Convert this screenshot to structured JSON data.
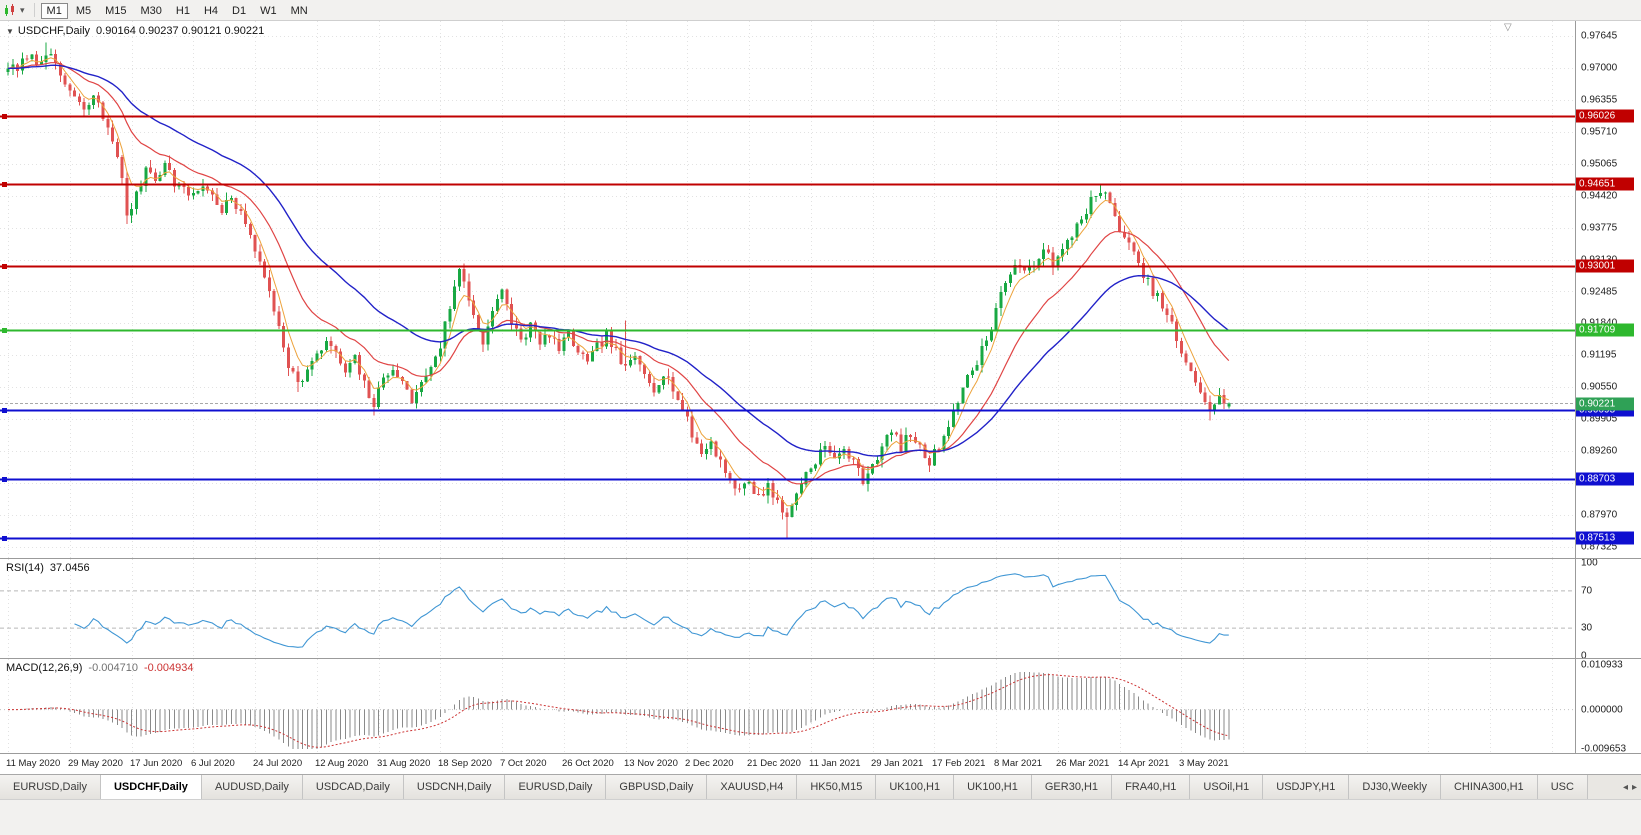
{
  "window": {
    "title": "USDCHF,Daily"
  },
  "toolbar": {
    "timeframes": [
      "M1",
      "M5",
      "M15",
      "M30",
      "H1",
      "H4",
      "D1",
      "W1",
      "MN"
    ],
    "active_timeframe": "M1"
  },
  "chart": {
    "symbol_label": "USDCHF,Daily",
    "ohlc_label": "0.90164 0.90237 0.90121 0.90221",
    "collapse_glyph": "▼",
    "shift_marker_glyph": "▽"
  },
  "rsi_panel": {
    "name": "RSI(14)",
    "value": "37.0456",
    "scale_labels": [
      "100",
      "70",
      "30",
      "0"
    ]
  },
  "macd_panel": {
    "name": "MACD(12,26,9)",
    "value_main": "-0.004710",
    "value_signal": "-0.004934",
    "scale_labels": [
      "0.010933",
      "0.000000",
      "-0.009653"
    ]
  },
  "tabs": {
    "items": [
      "EURUSD,Daily",
      "USDCHF,Daily",
      "AUDUSD,Daily",
      "USDCAD,Daily",
      "USDCNH,Daily",
      "EURUSD,Daily",
      "GBPUSD,Daily",
      "XAUUSD,H4",
      "HK50,M15",
      "UK100,H1",
      "UK100,H1",
      "GER30,H1",
      "FRA40,H1",
      "USOil,H1",
      "USDJPY,H1",
      "DJ30,Weekly",
      "CHINA300,H1",
      "USC"
    ],
    "active_index": 1,
    "scroll_left_glyph": "◂",
    "scroll_right_glyph": "▸"
  },
  "chart_data": {
    "type": "candlestick",
    "symbol": "USDCHF",
    "timeframe": "Daily",
    "bars": 258,
    "seed": 7,
    "last_ohlc": {
      "open": 0.90164,
      "high": 0.90237,
      "low": 0.90121,
      "close": 0.90221
    },
    "price_scale": {
      "top": 0.9795,
      "bottom": 0.871,
      "ticks": [
        "0.97645",
        "0.97000",
        "0.96355",
        "0.95710",
        "0.95065",
        "0.94420",
        "0.93775",
        "0.93130",
        "0.92485",
        "0.91840",
        "0.91195",
        "0.90550",
        "0.89905",
        "0.89260",
        "0.88615",
        "0.87970",
        "0.87325"
      ]
    },
    "x_labels": [
      "11 May 2020",
      "29 May 2020",
      "17 Jun 2020",
      "6 Jul 2020",
      "24 Jul 2020",
      "12 Aug 2020",
      "31 Aug 2020",
      "18 Sep 2020",
      "7 Oct 2020",
      "26 Oct 2020",
      "13 Nov 2020",
      "2 Dec 2020",
      "21 Dec 2020",
      "11 Jan 2021",
      "29 Jan 2021",
      "17 Feb 2021",
      "8 Mar 2021",
      "26 Mar 2021",
      "14 Apr 2021",
      "3 May 2021"
    ],
    "bars_per_label": 13,
    "colors": {
      "up": "#18a843",
      "down": "#e05252",
      "grid": "#e2e2e2",
      "bid_line": "#a8a8a8"
    },
    "horizontal_lines": [
      {
        "price": 0.96026,
        "label": "0.96026",
        "color": "#c00000",
        "width": 2,
        "kind": "resistance"
      },
      {
        "price": 0.94651,
        "label": "0.94651",
        "color": "#c00000",
        "width": 2,
        "kind": "resistance"
      },
      {
        "price": 0.93001,
        "label": "0.93001",
        "color": "#c00000",
        "width": 2,
        "kind": "resistance"
      },
      {
        "price": 0.91709,
        "label": "0.91709",
        "color": "#2eb82e",
        "width": 2,
        "kind": "pivot"
      },
      {
        "price": 0.90095,
        "label": "0.90095",
        "color": "#0f0fd0",
        "width": 2,
        "kind": "support"
      },
      {
        "price": 0.88703,
        "label": "0.88703",
        "color": "#0f0fd0",
        "width": 2,
        "kind": "support"
      },
      {
        "price": 0.87513,
        "label": "0.87513",
        "color": "#0f0fd0",
        "width": 2,
        "kind": "support"
      }
    ],
    "bid": {
      "price": 0.90221,
      "label": "0.90221",
      "box_color": "#2fa156"
    },
    "moving_averages": [
      {
        "period": 5,
        "color": "#eda33c",
        "width": 1
      },
      {
        "period": 18,
        "color": "#e04545",
        "width": 1.2
      },
      {
        "period": 40,
        "color": "#2222c8",
        "width": 1.4
      }
    ],
    "anchors": [
      [
        0,
        0.9705
      ],
      [
        2,
        0.9692
      ],
      [
        4,
        0.9728
      ],
      [
        6,
        0.971
      ],
      [
        8,
        0.9735
      ],
      [
        10,
        0.97
      ],
      [
        12,
        0.9668
      ],
      [
        14,
        0.964
      ],
      [
        16,
        0.961
      ],
      [
        18,
        0.9645
      ],
      [
        20,
        0.96
      ],
      [
        22,
        0.956
      ],
      [
        24,
        0.947
      ],
      [
        25,
        0.9405
      ],
      [
        27,
        0.944
      ],
      [
        29,
        0.95
      ],
      [
        31,
        0.948
      ],
      [
        33,
        0.9505
      ],
      [
        35,
        0.947
      ],
      [
        37,
        0.945
      ],
      [
        39,
        0.9445
      ],
      [
        41,
        0.9465
      ],
      [
        43,
        0.944
      ],
      [
        45,
        0.9415
      ],
      [
        47,
        0.9435
      ],
      [
        49,
        0.94
      ],
      [
        51,
        0.937
      ],
      [
        53,
        0.93
      ],
      [
        55,
        0.925
      ],
      [
        57,
        0.918
      ],
      [
        59,
        0.9105
      ],
      [
        61,
        0.906
      ],
      [
        63,
        0.909
      ],
      [
        65,
        0.9115
      ],
      [
        67,
        0.915
      ],
      [
        69,
        0.912
      ],
      [
        71,
        0.9085
      ],
      [
        73,
        0.911
      ],
      [
        75,
        0.906
      ],
      [
        77,
        0.902
      ],
      [
        79,
        0.907
      ],
      [
        81,
        0.91
      ],
      [
        83,
        0.906
      ],
      [
        85,
        0.903
      ],
      [
        87,
        0.906
      ],
      [
        89,
        0.91
      ],
      [
        91,
        0.914
      ],
      [
        93,
        0.922
      ],
      [
        95,
        0.929
      ],
      [
        96,
        0.927
      ],
      [
        98,
        0.92
      ],
      [
        100,
        0.915
      ],
      [
        102,
        0.921
      ],
      [
        104,
        0.9245
      ],
      [
        106,
        0.919
      ],
      [
        108,
        0.915
      ],
      [
        110,
        0.918
      ],
      [
        112,
        0.914
      ],
      [
        114,
        0.9165
      ],
      [
        116,
        0.913
      ],
      [
        118,
        0.916
      ],
      [
        120,
        0.913
      ],
      [
        122,
        0.91
      ],
      [
        124,
        0.9135
      ],
      [
        126,
        0.916
      ],
      [
        128,
        0.9125
      ],
      [
        130,
        0.909
      ],
      [
        132,
        0.9115
      ],
      [
        134,
        0.9085
      ],
      [
        136,
        0.9055
      ],
      [
        138,
        0.9085
      ],
      [
        140,
        0.9055
      ],
      [
        142,
        0.901
      ],
      [
        144,
        0.896
      ],
      [
        146,
        0.892
      ],
      [
        148,
        0.8945
      ],
      [
        150,
        0.8905
      ],
      [
        152,
        0.887
      ],
      [
        154,
        0.8845
      ],
      [
        156,
        0.8865
      ],
      [
        158,
        0.883
      ],
      [
        160,
        0.886
      ],
      [
        162,
        0.882
      ],
      [
        164,
        0.879
      ],
      [
        166,
        0.8845
      ],
      [
        168,
        0.888
      ],
      [
        170,
        0.891
      ],
      [
        172,
        0.8935
      ],
      [
        174,
        0.8905
      ],
      [
        176,
        0.8935
      ],
      [
        178,
        0.89
      ],
      [
        180,
        0.887
      ],
      [
        182,
        0.89
      ],
      [
        184,
        0.8935
      ],
      [
        186,
        0.8965
      ],
      [
        188,
        0.8935
      ],
      [
        190,
        0.896
      ],
      [
        192,
        0.893
      ],
      [
        194,
        0.8905
      ],
      [
        196,
        0.8935
      ],
      [
        198,
        0.8985
      ],
      [
        200,
        0.903
      ],
      [
        202,
        0.907
      ],
      [
        204,
        0.911
      ],
      [
        206,
        0.915
      ],
      [
        208,
        0.9215
      ],
      [
        210,
        0.927
      ],
      [
        212,
        0.93
      ],
      [
        214,
        0.928
      ],
      [
        216,
        0.931
      ],
      [
        218,
        0.934
      ],
      [
        220,
        0.9295
      ],
      [
        222,
        0.933
      ],
      [
        224,
        0.9365
      ],
      [
        226,
        0.94
      ],
      [
        228,
        0.943
      ],
      [
        230,
        0.945
      ],
      [
        231,
        0.944
      ],
      [
        233,
        0.94
      ],
      [
        235,
        0.936
      ],
      [
        237,
        0.932
      ],
      [
        239,
        0.928
      ],
      [
        241,
        0.925
      ],
      [
        243,
        0.922
      ],
      [
        245,
        0.918
      ],
      [
        247,
        0.912
      ],
      [
        249,
        0.908
      ],
      [
        251,
        0.905
      ],
      [
        253,
        0.901
      ],
      [
        255,
        0.9035
      ],
      [
        256,
        0.9015
      ],
      [
        257,
        0.90221
      ]
    ],
    "wick_overrides": [
      {
        "i": 8,
        "high": 0.9752
      },
      {
        "i": 25,
        "low": 0.9385
      },
      {
        "i": 61,
        "low": 0.9045
      },
      {
        "i": 77,
        "low": 0.8998
      },
      {
        "i": 95,
        "high": 0.9296
      },
      {
        "i": 130,
        "high": 0.919
      },
      {
        "i": 164,
        "low": 0.87513
      },
      {
        "i": 230,
        "high": 0.94651
      },
      {
        "i": 253,
        "low": 0.8988
      }
    ],
    "indicators": {
      "rsi": {
        "period": 14,
        "levels": [
          70,
          30
        ],
        "color": "#3f96d4",
        "range": [
          0,
          100
        ]
      },
      "macd": {
        "fast": 12,
        "slow": 26,
        "signal": 9,
        "scale_max": 0.010933,
        "scale_min": -0.009653,
        "histogram_color": "#8a8a8a",
        "signal_color": "#cc3333"
      }
    }
  }
}
